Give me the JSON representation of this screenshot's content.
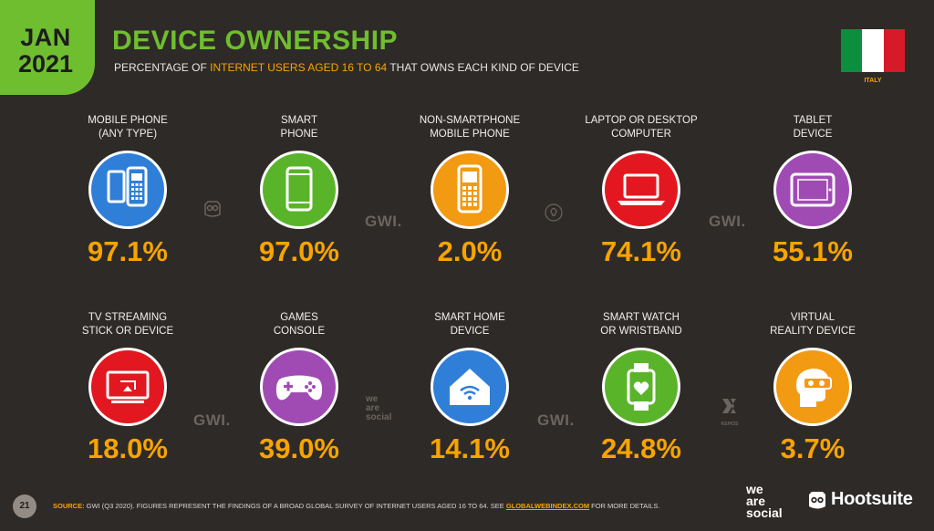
{
  "header": {
    "date_month": "JAN",
    "date_year": "2021",
    "title": "DEVICE OWNERSHIP",
    "subtitle_pre": "PERCENTAGE OF ",
    "subtitle_highlight": "INTERNET USERS AGED 16 TO 64",
    "subtitle_post": " THAT OWNS EACH KIND OF DEVICE",
    "country": "ITALY",
    "flag_colors": [
      "#0b8f3c",
      "#ffffff",
      "#d71a2a"
    ]
  },
  "colors": {
    "background": "#2e2a27",
    "accent_green": "#6fbe2f",
    "accent_orange": "#f7a400"
  },
  "devices": [
    {
      "label_line1": "MOBILE PHONE",
      "label_line2": "(ANY TYPE)",
      "value": "97.1%",
      "color": "#2f7fd8",
      "icon": "mobile-phones-icon"
    },
    {
      "label_line1": "SMART",
      "label_line2": "PHONE",
      "value": "97.0%",
      "color": "#5ab42a",
      "icon": "smartphone-icon"
    },
    {
      "label_line1": "NON-SMARTPHONE",
      "label_line2": "MOBILE PHONE",
      "value": "2.0%",
      "color": "#f29a12",
      "icon": "feature-phone-icon"
    },
    {
      "label_line1": "LAPTOP OR DESKTOP",
      "label_line2": "COMPUTER",
      "value": "74.1%",
      "color": "#e3171f",
      "icon": "laptop-icon"
    },
    {
      "label_line1": "TABLET",
      "label_line2": "DEVICE",
      "value": "55.1%",
      "color": "#a04bb4",
      "icon": "tablet-icon"
    },
    {
      "label_line1": "TV STREAMING",
      "label_line2": "STICK OR DEVICE",
      "value": "18.0%",
      "color": "#e3171f",
      "icon": "tv-streaming-icon"
    },
    {
      "label_line1": "GAMES",
      "label_line2": "CONSOLE",
      "value": "39.0%",
      "color": "#a04bb4",
      "icon": "gamepad-icon"
    },
    {
      "label_line1": "SMART HOME",
      "label_line2": "DEVICE",
      "value": "14.1%",
      "color": "#2f7fd8",
      "icon": "smart-home-icon"
    },
    {
      "label_line1": "SMART WATCH",
      "label_line2": "OR WRISTBAND",
      "value": "24.8%",
      "color": "#5ab42a",
      "icon": "smartwatch-icon"
    },
    {
      "label_line1": "VIRTUAL",
      "label_line2": "REALITY DEVICE",
      "value": "3.7%",
      "color": "#f29a12",
      "icon": "vr-headset-icon"
    }
  ],
  "watermarks": {
    "gwi": "GWI.",
    "we": "we",
    "are": "are",
    "social": "social",
    "kepios": "KEPIOS"
  },
  "footer": {
    "page_number": "21",
    "source_label": "SOURCE:",
    "source_text": " GWI (Q3 2020). FIGURES REPRESENT THE FINDINGS OF A BROAD GLOBAL SURVEY OF INTERNET USERS AGED 16 TO 64. SEE ",
    "source_link": "GLOBALWEBINDEX.COM",
    "source_end": " FOR MORE DETAILS.",
    "logo_we": "we",
    "logo_are": "are",
    "logo_social": "social",
    "logo_hootsuite": "Hootsuite"
  }
}
